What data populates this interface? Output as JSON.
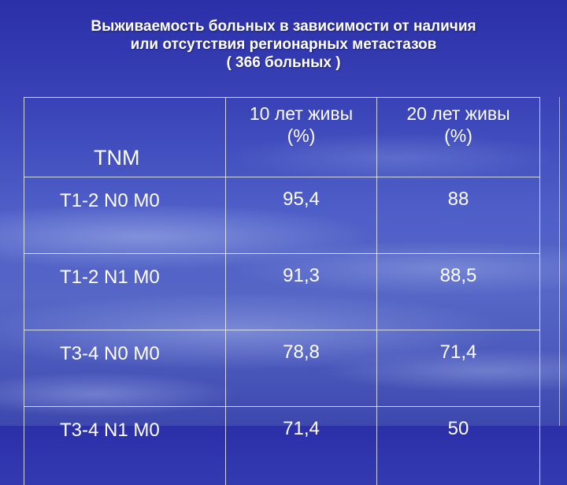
{
  "title": {
    "line1": "Выживаемость больных в зависимости от наличия",
    "line2": "или отсутствия регионарных метастазов",
    "line3": "( 366 больных )"
  },
  "table": {
    "headers": {
      "tnm": "TNM",
      "col10_line1": "10 лет живы",
      "col10_line2": "(%)",
      "col20_line1": "20 лет живы",
      "col20_line2": "(%)"
    },
    "rows": [
      {
        "tnm": "T1-2 N0 M0",
        "y10": "95,4",
        "y20": "88"
      },
      {
        "tnm": "T1-2 N1 M0",
        "y10": "91,3",
        "y20": "88,5"
      },
      {
        "tnm": "T3-4 N0 M0",
        "y10": "78,8",
        "y20": "71,4"
      },
      {
        "tnm": "T3-4 N1 M0",
        "y10": "71,4",
        "y20": "50"
      }
    ]
  }
}
